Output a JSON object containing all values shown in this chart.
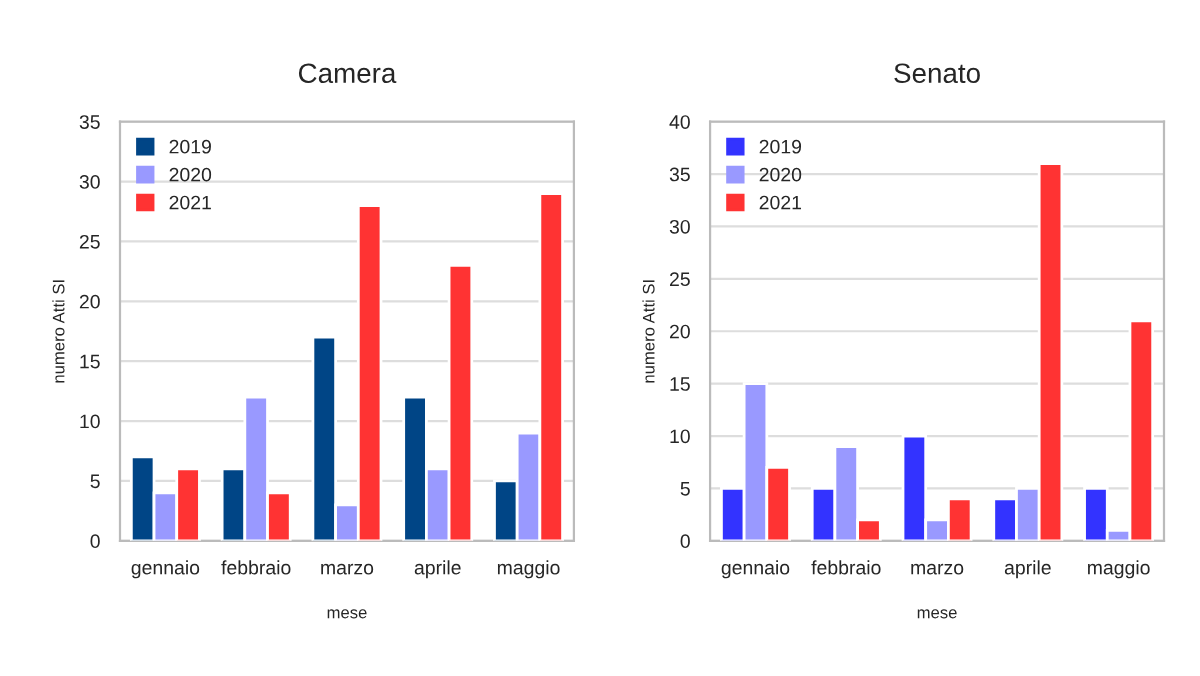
{
  "chart_data": [
    {
      "type": "bar",
      "title": "Camera",
      "xlabel": "mese",
      "ylabel": "numero Atti SI",
      "categories": [
        "gennaio",
        "febbraio",
        "marzo",
        "aprile",
        "maggio"
      ],
      "series": [
        {
          "name": "2019",
          "color": "#004586",
          "values": [
            7,
            6,
            17,
            12,
            5
          ]
        },
        {
          "name": "2020",
          "color": "#9999ff",
          "values": [
            4,
            12,
            3,
            6,
            9
          ]
        },
        {
          "name": "2021",
          "color": "#ff3333",
          "values": [
            6,
            4,
            28,
            23,
            29
          ]
        }
      ],
      "ylim": [
        0,
        35
      ],
      "yticks": [
        0,
        5,
        10,
        15,
        20,
        25,
        30,
        35
      ],
      "grid": "y",
      "legend": "top left"
    },
    {
      "type": "bar",
      "title": "Senato",
      "xlabel": "mese",
      "ylabel": "numero Atti SI",
      "categories": [
        "gennaio",
        "febbraio",
        "marzo",
        "aprile",
        "maggio"
      ],
      "series": [
        {
          "name": "2019",
          "color": "#3333ff",
          "values": [
            5,
            5,
            10,
            4,
            5
          ]
        },
        {
          "name": "2020",
          "color": "#9999ff",
          "values": [
            15,
            9,
            2,
            5,
            1
          ]
        },
        {
          "name": "2021",
          "color": "#ff3333",
          "values": [
            7,
            2,
            4,
            36,
            21
          ]
        }
      ],
      "ylim": [
        0,
        40
      ],
      "yticks": [
        0,
        5,
        10,
        15,
        20,
        25,
        30,
        35,
        40
      ],
      "grid": "y",
      "legend": "top left"
    }
  ]
}
